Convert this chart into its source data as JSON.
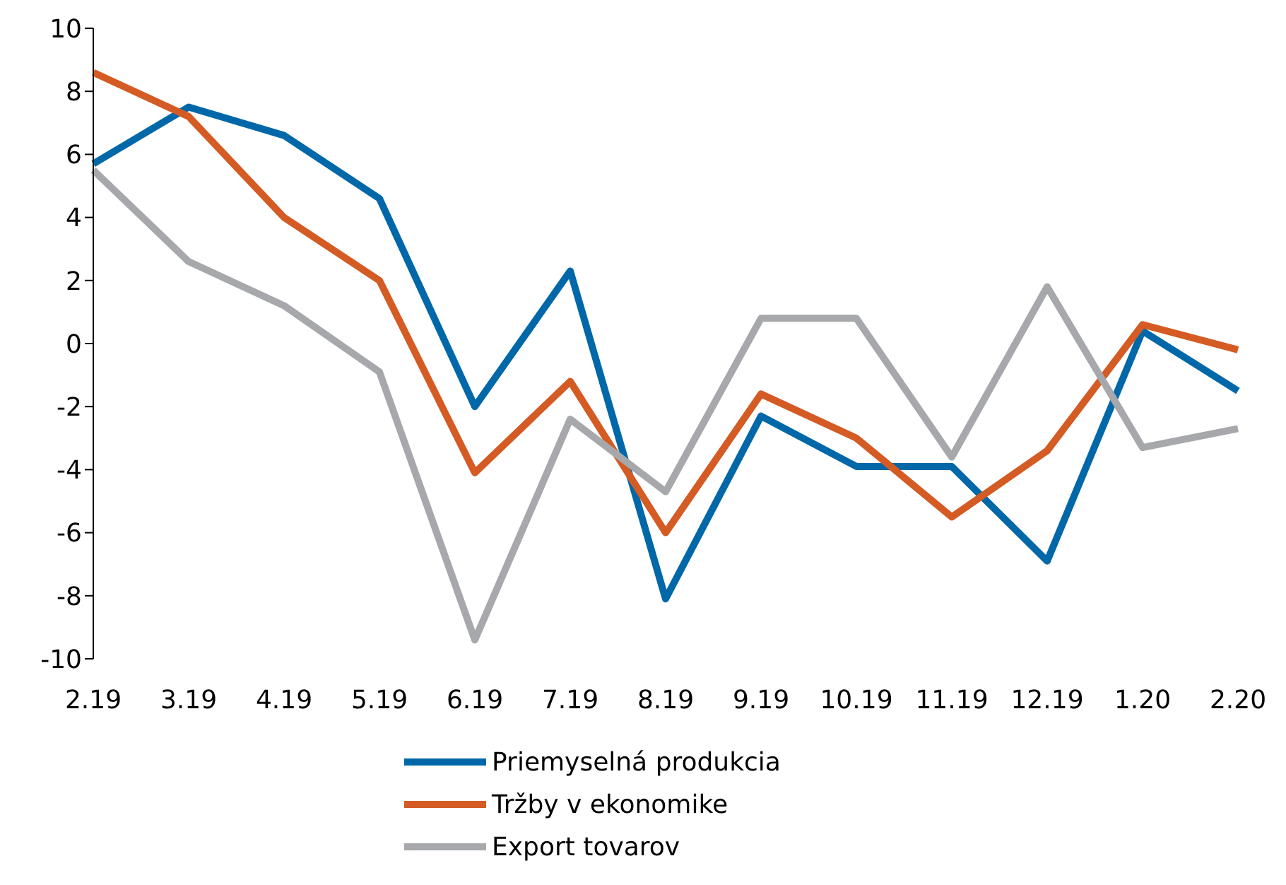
{
  "chart_data": {
    "type": "line",
    "categories": [
      "2.19",
      "3.19",
      "4.19",
      "5.19",
      "6.19",
      "7.19",
      "8.19",
      "9.19",
      "10.19",
      "11.19",
      "12.19",
      "1.20",
      "2.20"
    ],
    "series": [
      {
        "name": "Priemyselná produkcia",
        "color": "#0068a8",
        "values": [
          5.7,
          7.5,
          6.6,
          4.6,
          -2.0,
          2.3,
          -8.1,
          -2.3,
          -3.9,
          -3.9,
          -6.9,
          0.4,
          -1.5
        ]
      },
      {
        "name": "Tržby v ekonomike",
        "color": "#d45b24",
        "values": [
          8.6,
          7.2,
          4.0,
          2.0,
          -4.1,
          -1.2,
          -6.0,
          -1.6,
          -3.0,
          -5.5,
          -3.4,
          0.6,
          -0.2
        ]
      },
      {
        "name": "Export tovarov",
        "color": "#a6a8ab",
        "values": [
          5.5,
          2.6,
          1.2,
          -0.9,
          -9.4,
          -2.4,
          -4.7,
          0.8,
          0.8,
          -3.6,
          1.8,
          -3.3,
          -2.7
        ]
      }
    ],
    "ylim": [
      -10,
      10
    ],
    "yticks": [
      -10,
      -8,
      -6,
      -4,
      -2,
      0,
      2,
      4,
      6,
      8,
      10
    ],
    "grid": false,
    "legend": "bottom",
    "marker": "none",
    "line_style": "solid"
  }
}
